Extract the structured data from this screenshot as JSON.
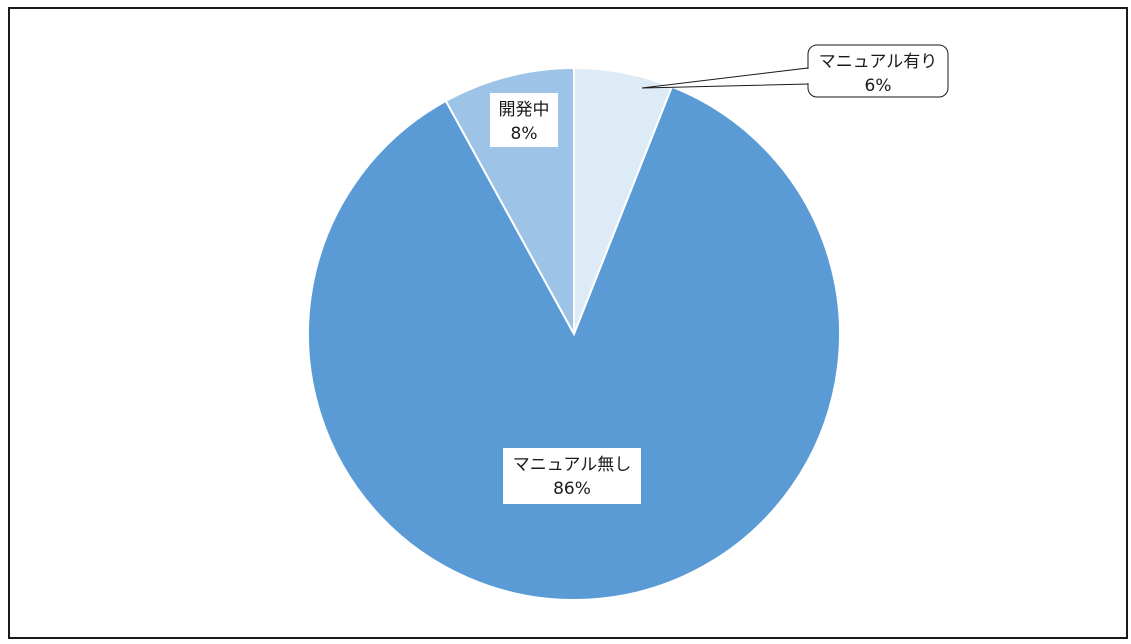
{
  "chart_data": {
    "type": "pie",
    "start_angle_deg": 0,
    "direction": "clockwise",
    "slices": [
      {
        "name": "マニュアル有り",
        "value": 6,
        "label": "6%",
        "color": "#ddebf7"
      },
      {
        "name": "マニュアル無し",
        "value": 86,
        "label": "86%",
        "color": "#5b9bd5"
      },
      {
        "name": "開発中",
        "value": 8,
        "label": "8%",
        "color": "#9dc3e6"
      }
    ],
    "slice_border_color": "#ffffff",
    "title": "",
    "legend": "none"
  }
}
